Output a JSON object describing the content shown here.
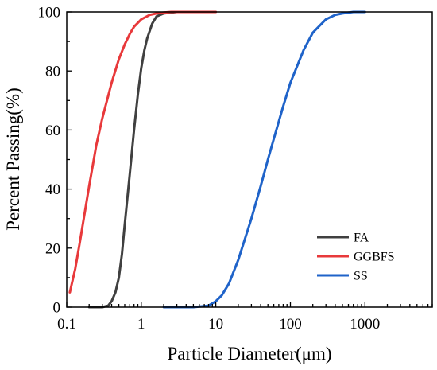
{
  "chart_data": {
    "type": "line",
    "xlabel": "Particle Diameter(μm)",
    "ylabel": "Percent Passing(%)",
    "x_scale": "log",
    "xlim": [
      0.1,
      8000
    ],
    "ylim": [
      0,
      100
    ],
    "x_ticks": [
      0.1,
      1,
      10,
      100,
      1000
    ],
    "x_tick_labels": [
      "0.1",
      "1",
      "10",
      "100",
      "1000"
    ],
    "y_ticks": [
      0,
      20,
      40,
      60,
      80,
      100
    ],
    "y_tick_labels": [
      "0",
      "20",
      "40",
      "60",
      "80",
      "100"
    ],
    "grid": false,
    "legend_position": "bottom-right",
    "series": [
      {
        "name": "FA",
        "color": "#404040",
        "x": [
          0.2,
          0.3,
          0.36,
          0.4,
          0.45,
          0.5,
          0.55,
          0.6,
          0.7,
          0.8,
          0.9,
          1.0,
          1.1,
          1.2,
          1.4,
          1.6,
          2.0,
          3.0,
          5.0,
          8.0
        ],
        "y": [
          0,
          0,
          0.5,
          2,
          5,
          10,
          18,
          28,
          45,
          60,
          72,
          81,
          87,
          91,
          96,
          98.5,
          99.5,
          100,
          100,
          100
        ]
      },
      {
        "name": "GGBFS",
        "color": "#e8393b",
        "x": [
          0.11,
          0.13,
          0.15,
          0.2,
          0.25,
          0.3,
          0.4,
          0.5,
          0.6,
          0.7,
          0.8,
          1.0,
          1.3,
          1.6,
          2.0,
          2.5,
          3.0,
          5.0,
          10.0
        ],
        "y": [
          5,
          13,
          22,
          41,
          55,
          64,
          76,
          84,
          89,
          92.5,
          95,
          97.5,
          99,
          99.5,
          99.8,
          100,
          100,
          100,
          100
        ]
      },
      {
        "name": "SS",
        "color": "#1f63c9",
        "x": [
          2,
          5,
          8,
          10,
          12,
          15,
          20,
          30,
          40,
          50,
          60,
          80,
          100,
          150,
          200,
          300,
          400,
          500,
          700,
          1000
        ],
        "y": [
          0,
          0,
          0.5,
          2,
          4,
          8,
          16,
          30,
          41,
          50,
          57,
          68,
          76,
          87,
          93,
          97.5,
          99,
          99.5,
          100,
          100
        ]
      }
    ]
  }
}
